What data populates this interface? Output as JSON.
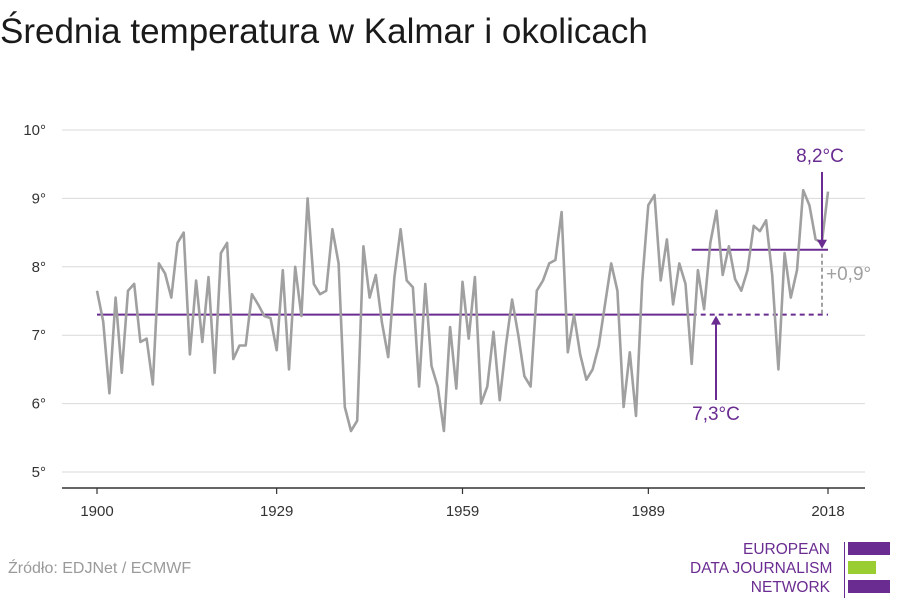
{
  "title": "Średnia temperatura w Kalmar i okolicach",
  "source": "Źródło: EDJNet / ECMWF",
  "logo": {
    "lines": [
      "EUROPEAN",
      "DATA JOURNALISM",
      "NETWORK"
    ],
    "colors": {
      "primary": "#6a2c91",
      "accent": "#9acd32"
    }
  },
  "colors": {
    "series": "#a0a0a0",
    "reference": "#6a2c91",
    "grid": "#d9d9d9",
    "axis": "#333333",
    "diff": "#a0a0a0"
  },
  "chart_data": {
    "type": "line",
    "title": "Średnia temperatura w Kalmar i okolicach",
    "xlabel": "",
    "ylabel": "",
    "xlim": [
      1900,
      2018
    ],
    "ylim": [
      5,
      10
    ],
    "grid": true,
    "x_ticks": [
      1900,
      1929,
      1959,
      1989,
      2018
    ],
    "x_tick_labels": [
      "1900",
      "1929",
      "1959",
      "1989",
      "2018"
    ],
    "y_ticks": [
      5,
      6,
      7,
      8,
      9,
      10
    ],
    "y_tick_labels": [
      "5°",
      "6°",
      "7°",
      "8°",
      "9°",
      "10°"
    ],
    "series": [
      {
        "x": [
          1900,
          1901,
          1902,
          1903,
          1904,
          1905,
          1906,
          1907,
          1908,
          1909,
          1910,
          1911,
          1912,
          1913,
          1914,
          1915,
          1916,
          1917,
          1918,
          1919,
          1920,
          1921,
          1922,
          1923,
          1924,
          1925,
          1926,
          1927,
          1928,
          1929,
          1930,
          1931,
          1932,
          1933,
          1934,
          1935,
          1936,
          1937,
          1938,
          1939,
          1940,
          1941,
          1942,
          1943,
          1944,
          1945,
          1946,
          1947,
          1948,
          1949,
          1950,
          1951,
          1952,
          1953,
          1954,
          1955,
          1956,
          1957,
          1958,
          1959,
          1960,
          1961,
          1962,
          1963,
          1964,
          1965,
          1966,
          1967,
          1968,
          1969,
          1970,
          1971,
          1972,
          1973,
          1974,
          1975,
          1976,
          1977,
          1978,
          1979,
          1980,
          1981,
          1982,
          1983,
          1984,
          1985,
          1986,
          1987,
          1988,
          1989,
          1990,
          1991,
          1992,
          1993,
          1994,
          1995,
          1996,
          1997,
          1998,
          1999,
          2000,
          2001,
          2002,
          2003,
          2004,
          2005,
          2006,
          2007,
          2008,
          2009,
          2010,
          2011,
          2012,
          2013,
          2014,
          2015,
          2016,
          2017,
          2018
        ],
        "values": [
          7.65,
          7.2,
          6.15,
          7.55,
          6.45,
          7.65,
          7.75,
          6.9,
          6.95,
          6.28,
          8.05,
          7.9,
          7.55,
          8.35,
          8.5,
          6.72,
          7.8,
          6.9,
          7.85,
          6.45,
          8.2,
          8.35,
          6.65,
          6.85,
          6.85,
          7.6,
          7.45,
          7.28,
          7.25,
          6.78,
          7.95,
          6.5,
          8.0,
          7.28,
          9.0,
          7.75,
          7.6,
          7.65,
          8.55,
          8.05,
          5.95,
          5.6,
          5.75,
          8.3,
          7.55,
          7.88,
          7.18,
          6.68,
          7.85,
          8.55,
          7.8,
          7.7,
          6.25,
          7.75,
          6.55,
          6.25,
          5.6,
          7.12,
          6.22,
          7.78,
          6.95,
          7.85,
          6.0,
          6.25,
          7.05,
          6.05,
          6.85,
          7.52,
          7.0,
          6.4,
          6.25,
          7.65,
          7.8,
          8.05,
          8.1,
          8.8,
          6.75,
          7.3,
          6.72,
          6.35,
          6.5,
          6.85,
          7.45,
          8.05,
          7.65,
          5.95,
          6.75,
          5.82,
          7.78,
          8.9,
          9.05,
          7.8,
          8.4,
          7.45,
          8.05,
          7.75,
          6.58,
          7.95,
          7.38,
          8.35,
          8.82,
          7.88,
          8.3,
          7.82,
          7.65,
          7.95,
          8.6,
          8.52,
          8.68,
          7.88,
          6.5,
          8.2,
          7.55,
          7.95,
          9.12,
          8.9,
          8.4,
          8.35,
          9.1
        ]
      }
    ],
    "reference_lines": [
      {
        "label": "7,3°C",
        "value": 7.3,
        "x_start": 1900,
        "x_end": 2018,
        "dashed_from": 1996
      },
      {
        "label": "8,2°C",
        "value": 8.25,
        "x_start": 1996,
        "x_end": 2018
      }
    ],
    "annotations": {
      "difference": "+0,9°"
    }
  }
}
